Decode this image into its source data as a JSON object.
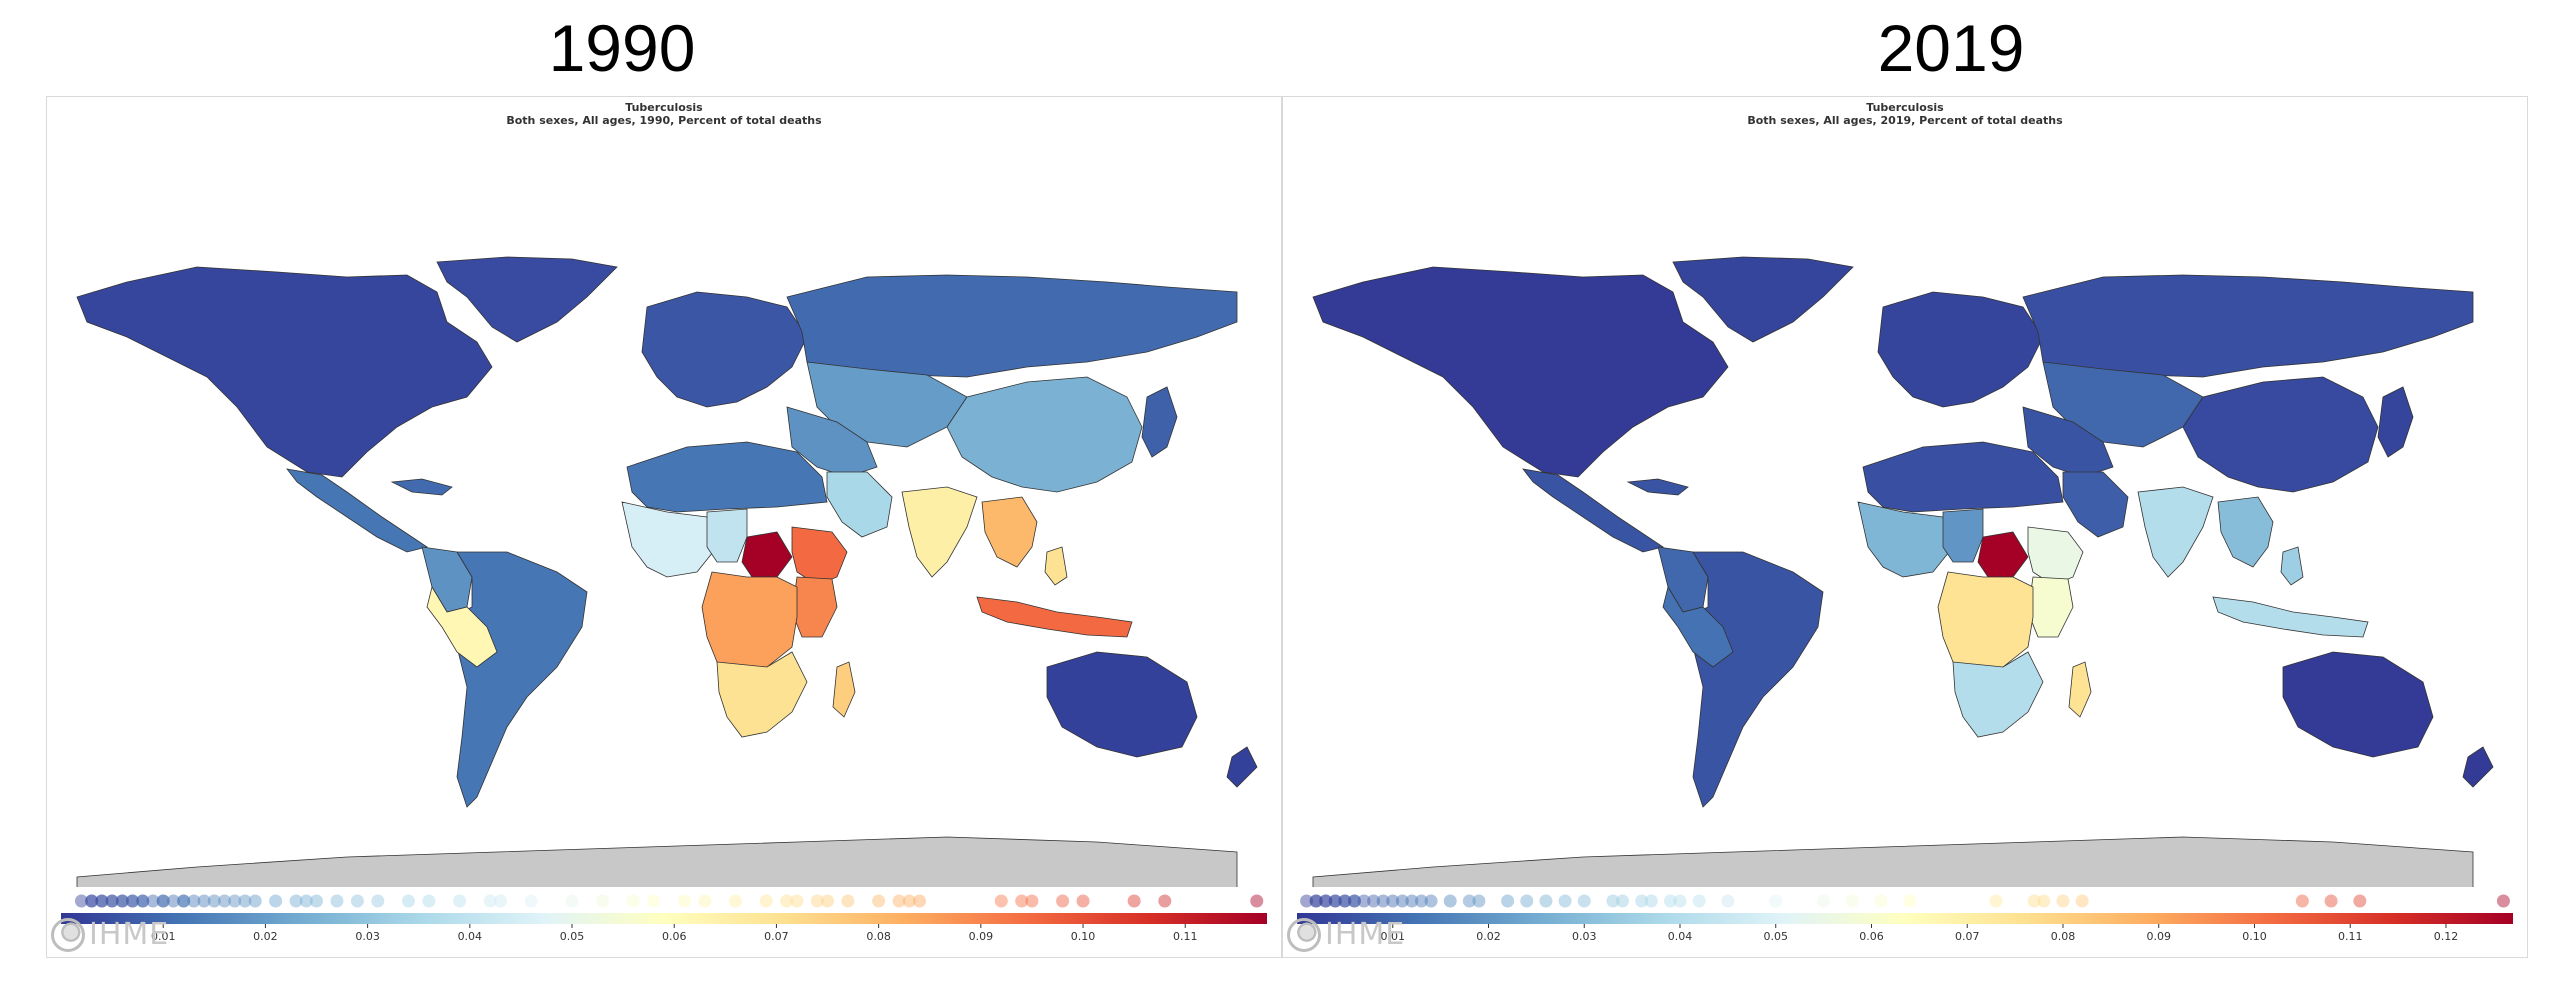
{
  "years": {
    "left": "1990",
    "right": "2019"
  },
  "maps": [
    {
      "id": "left",
      "title": "Tuberculosis",
      "subtitle": "Both sexes, All ages, 1990, Percent of total deaths",
      "logo_text": "IHME",
      "scale": {
        "min": 0.0,
        "max": 0.118,
        "ticks": [
          "0.01",
          "0.02",
          "0.03",
          "0.04",
          "0.05",
          "0.06",
          "0.07",
          "0.08",
          "0.09",
          "0.10",
          "0.11"
        ],
        "tick_values": [
          0.01,
          0.02,
          0.03,
          0.04,
          0.05,
          0.06,
          0.07,
          0.08,
          0.09,
          0.1,
          0.11
        ]
      },
      "regions": {
        "north_america": 0.003,
        "greenland": 0.004,
        "central_america": 0.012,
        "caribbean": 0.01,
        "south_america": 0.012,
        "bolivia_peru": 0.062,
        "andes": 0.018,
        "europe": 0.006,
        "russia": 0.01,
        "central_asia": 0.02,
        "china": 0.025,
        "middle_east": 0.018,
        "arabian": 0.035,
        "north_africa": 0.012,
        "west_africa": 0.045,
        "sahel": 0.04,
        "central_africa_hot": 0.118,
        "east_africa": 0.09,
        "ethiopia": 0.095,
        "congo": 0.085,
        "southern_africa": 0.07,
        "madagascar": 0.075,
        "india": 0.065,
        "southeast_asia": 0.08,
        "indonesia": 0.095,
        "philippines": 0.07,
        "japan_korea": 0.008,
        "australia": 0.002,
        "nz": 0.002,
        "antarctica": null
      },
      "legend_dots": [
        0.002,
        0.003,
        0.003,
        0.004,
        0.004,
        0.005,
        0.005,
        0.006,
        0.006,
        0.007,
        0.007,
        0.008,
        0.008,
        0.009,
        0.01,
        0.01,
        0.011,
        0.012,
        0.012,
        0.013,
        0.014,
        0.015,
        0.016,
        0.017,
        0.018,
        0.019,
        0.021,
        0.023,
        0.024,
        0.025,
        0.027,
        0.029,
        0.031,
        0.034,
        0.036,
        0.039,
        0.042,
        0.043,
        0.046,
        0.05,
        0.053,
        0.056,
        0.058,
        0.061,
        0.063,
        0.066,
        0.069,
        0.071,
        0.072,
        0.074,
        0.075,
        0.077,
        0.08,
        0.082,
        0.083,
        0.084,
        0.092,
        0.094,
        0.095,
        0.098,
        0.1,
        0.105,
        0.108,
        0.117
      ]
    },
    {
      "id": "right",
      "title": "Tuberculosis",
      "subtitle": "Both sexes, All ages, 2019, Percent of total deaths",
      "logo_text": "IHME",
      "scale": {
        "min": 0.0,
        "max": 0.127,
        "ticks": [
          "0.01",
          "0.02",
          "0.03",
          "0.04",
          "0.05",
          "0.06",
          "0.07",
          "0.08",
          "0.09",
          "0.10",
          "0.11",
          "0.12"
        ],
        "tick_values": [
          0.01,
          0.02,
          0.03,
          0.04,
          0.05,
          0.06,
          0.07,
          0.08,
          0.09,
          0.1,
          0.11,
          0.12
        ]
      },
      "regions": {
        "north_america": 0.001,
        "greenland": 0.003,
        "central_america": 0.006,
        "caribbean": 0.006,
        "south_america": 0.006,
        "bolivia_peru": 0.012,
        "andes": 0.01,
        "europe": 0.003,
        "russia": 0.005,
        "central_asia": 0.01,
        "china": 0.004,
        "middle_east": 0.006,
        "arabian": 0.008,
        "north_africa": 0.005,
        "west_africa": 0.028,
        "sahel": 0.02,
        "central_africa_hot": 0.127,
        "east_africa": 0.06,
        "ethiopia": 0.055,
        "congo": 0.075,
        "southern_africa": 0.04,
        "madagascar": 0.075,
        "india": 0.04,
        "southeast_asia": 0.03,
        "indonesia": 0.04,
        "philippines": 0.035,
        "japan_korea": 0.003,
        "australia": 0.001,
        "nz": 0.001,
        "antarctica": null
      },
      "legend_dots": [
        0.001,
        0.002,
        0.002,
        0.003,
        0.003,
        0.004,
        0.004,
        0.005,
        0.005,
        0.006,
        0.006,
        0.007,
        0.008,
        0.009,
        0.01,
        0.011,
        0.012,
        0.013,
        0.014,
        0.016,
        0.018,
        0.019,
        0.022,
        0.024,
        0.026,
        0.028,
        0.03,
        0.033,
        0.034,
        0.036,
        0.037,
        0.039,
        0.04,
        0.042,
        0.045,
        0.05,
        0.055,
        0.058,
        0.061,
        0.064,
        0.073,
        0.077,
        0.078,
        0.08,
        0.082,
        0.105,
        0.108,
        0.111,
        0.126
      ]
    }
  ]
}
